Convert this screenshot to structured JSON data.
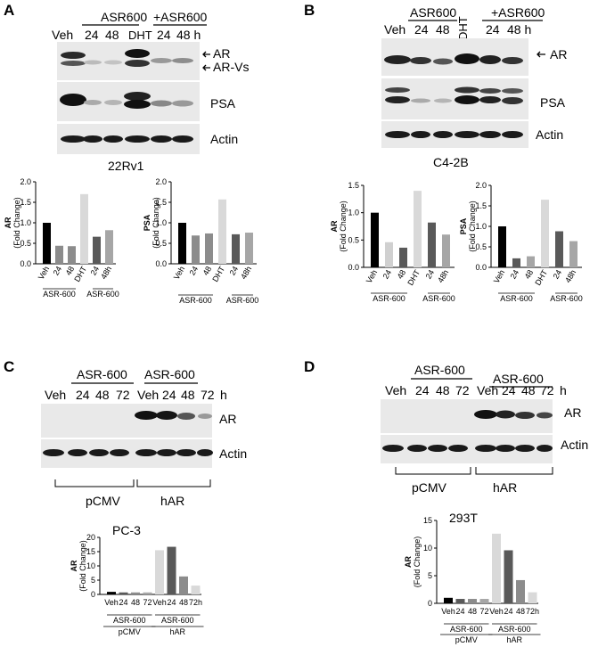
{
  "panels": [
    {
      "id": "A",
      "letter": "A",
      "cell_line": "22Rv1",
      "header": {
        "group1": "ASR600",
        "group2": "+ASR600",
        "lanes": [
          "Veh",
          "24",
          "48",
          "DHT",
          "24",
          "48 h"
        ]
      },
      "blot_labels": [
        "AR",
        "AR-Vs",
        "PSA",
        "Actin"
      ],
      "charts_ids": [
        "A-AR",
        "A-PSA"
      ]
    },
    {
      "id": "B",
      "letter": "B",
      "cell_line": "C4-2B",
      "header": {
        "group1": "ASR600",
        "group2": "+ASR600",
        "lanes": [
          "Veh",
          "24",
          "48",
          "DHT",
          "24",
          "48 h"
        ]
      },
      "blot_labels": [
        "AR",
        "PSA",
        "Actin"
      ],
      "charts_ids": [
        "B-AR",
        "B-PSA"
      ]
    },
    {
      "id": "C",
      "letter": "C",
      "cell_line": "PC-3",
      "header": {
        "group1": "ASR-600",
        "group2": "ASR-600",
        "lanes": [
          "Veh",
          "24",
          "48",
          "72",
          "Veh",
          "24",
          "48",
          "72",
          "h"
        ]
      },
      "blot_labels": [
        "AR",
        "Actin"
      ],
      "groups": [
        "pCMV",
        "hAR"
      ],
      "charts_ids": [
        "C-AR"
      ]
    },
    {
      "id": "D",
      "letter": "D",
      "cell_line": "293T",
      "header": {
        "group1": "ASR-600",
        "group2": "ASR-600",
        "lanes": [
          "Veh",
          "24",
          "48",
          "72",
          "Veh",
          "24",
          "48",
          "72",
          "h"
        ]
      },
      "blot_labels": [
        "AR",
        "Actin"
      ],
      "groups": [
        "pCMV",
        "hAR"
      ],
      "charts_ids": [
        "D-AR"
      ]
    }
  ],
  "chart_data": [
    {
      "id": "A-AR",
      "type": "bar",
      "ylabel": "AR",
      "ylabel2": "(Fold Change)",
      "ylim": [
        0,
        2.0
      ],
      "yticks": [
        "0.0",
        "0.5",
        "1.0",
        "1.5",
        "2.0"
      ],
      "categories": [
        "Veh",
        "24",
        "48",
        "DHT",
        "24",
        "48h"
      ],
      "values": [
        1.0,
        0.44,
        0.43,
        1.7,
        0.66,
        0.82
      ],
      "colors": [
        "#000000",
        "#8c8c8c",
        "#8c8c8c",
        "#d9d9d9",
        "#595959",
        "#a6a6a6"
      ],
      "groups": [
        "ASR-600",
        "ASR-600"
      ]
    },
    {
      "id": "A-PSA",
      "type": "bar",
      "ylabel": "PSA",
      "ylabel2": "(Fold Change)",
      "ylim": [
        0,
        2.0
      ],
      "yticks": [
        "0.0",
        "0.5",
        "1.0",
        "1.5",
        "2.0"
      ],
      "categories": [
        "Veh",
        "24",
        "48",
        "DHT",
        "24",
        "48h"
      ],
      "values": [
        1.0,
        0.69,
        0.74,
        1.57,
        0.72,
        0.76
      ],
      "colors": [
        "#000000",
        "#8c8c8c",
        "#8c8c8c",
        "#d9d9d9",
        "#595959",
        "#a6a6a6"
      ],
      "groups": [
        "ASR-600",
        "ASR-600"
      ]
    },
    {
      "id": "B-AR",
      "type": "bar",
      "ylabel": "AR",
      "ylabel2": "(Fold Change)",
      "ylim": [
        0,
        1.5
      ],
      "yticks": [
        "0.0",
        "0.5",
        "1.0",
        "1.5"
      ],
      "categories": [
        "Veh",
        "24",
        "48",
        "DHT",
        "24",
        "48h"
      ],
      "values": [
        1.0,
        0.46,
        0.36,
        1.4,
        0.82,
        0.6
      ],
      "colors": [
        "#000000",
        "#d0d0d0",
        "#595959",
        "#d9d9d9",
        "#595959",
        "#a6a6a6"
      ],
      "groups": [
        "ASR-600",
        "ASR-600"
      ]
    },
    {
      "id": "B-PSA",
      "type": "bar",
      "ylabel": "PSA",
      "ylabel2": "(Fold Change)",
      "ylim": [
        0,
        2.0
      ],
      "yticks": [
        "0.0",
        "0.5",
        "1.0",
        "1.5",
        "2.0"
      ],
      "categories": [
        "Veh",
        "24",
        "48",
        "DHT",
        "24",
        "48h"
      ],
      "values": [
        1.0,
        0.22,
        0.27,
        1.65,
        0.88,
        0.64
      ],
      "colors": [
        "#000000",
        "#595959",
        "#a6a6a6",
        "#d9d9d9",
        "#595959",
        "#a6a6a6"
      ],
      "groups": [
        "ASR-600",
        "ASR-600"
      ]
    },
    {
      "id": "C-AR",
      "type": "bar",
      "ylabel": "AR",
      "ylabel2": "(Fold Change)",
      "ylim": [
        0,
        20
      ],
      "yticks": [
        "0",
        "5",
        "10",
        "15",
        "20"
      ],
      "categories": [
        "Veh",
        "24",
        "48",
        "72",
        "Veh",
        "24",
        "48",
        "72h"
      ],
      "values": [
        0.9,
        0.7,
        0.7,
        0.7,
        15.5,
        16.7,
        6.3,
        3.1
      ],
      "colors": [
        "#000000",
        "#595959",
        "#8c8c8c",
        "#a6a6a6",
        "#d9d9d9",
        "#595959",
        "#8c8c8c",
        "#d9d9d9"
      ],
      "groups": [
        "ASR-600",
        "ASR-600"
      ],
      "outer_groups": [
        "pCMV",
        "hAR"
      ]
    },
    {
      "id": "D-AR",
      "type": "bar",
      "ylabel": "AR",
      "ylabel2": "(Fold Change)",
      "ylim": [
        0,
        15
      ],
      "yticks": [
        "0",
        "5",
        "10",
        "15"
      ],
      "categories": [
        "Veh",
        "24",
        "48",
        "72",
        "Veh",
        "24",
        "48",
        "72h"
      ],
      "values": [
        1.0,
        0.8,
        0.8,
        0.8,
        12.6,
        9.6,
        4.2,
        2.0
      ],
      "colors": [
        "#000000",
        "#595959",
        "#8c8c8c",
        "#a6a6a6",
        "#d9d9d9",
        "#595959",
        "#8c8c8c",
        "#d9d9d9"
      ],
      "groups": [
        "ASR-600",
        "ASR-600"
      ],
      "outer_groups": [
        "pCMV",
        "hAR"
      ]
    }
  ]
}
